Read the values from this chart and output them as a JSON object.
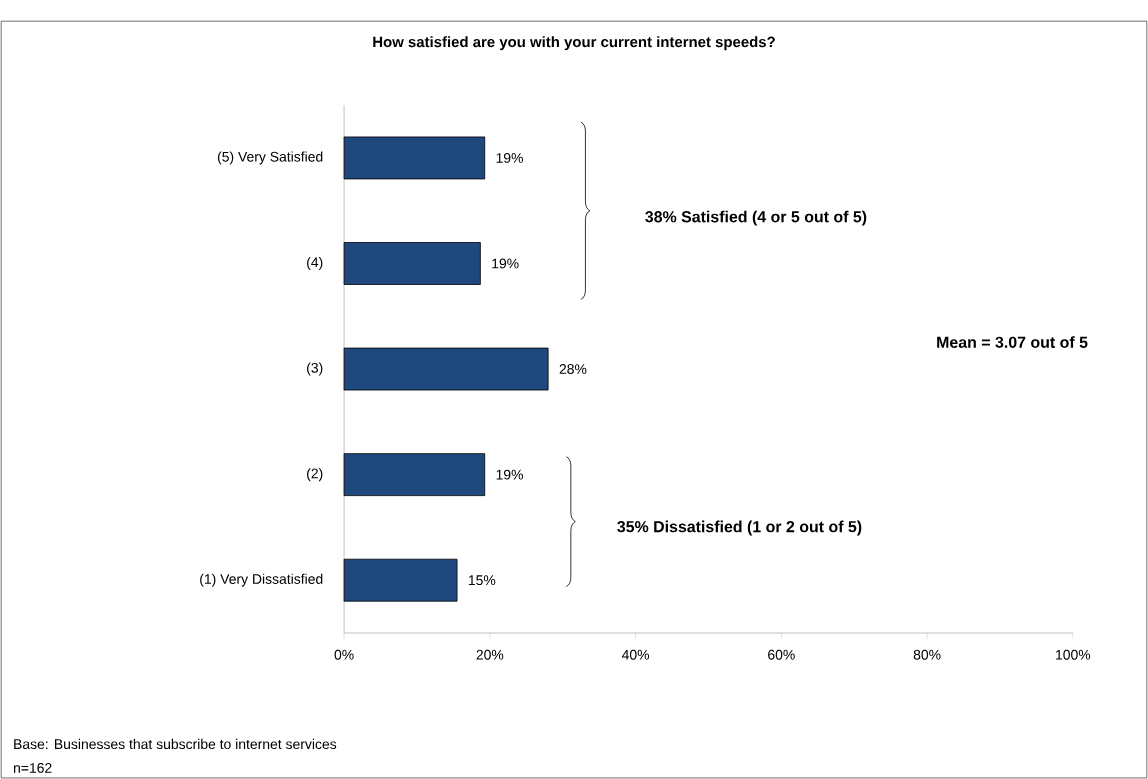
{
  "chart_data": {
    "type": "bar",
    "orientation": "horizontal",
    "title": "How satisfied are you with your current internet speeds?",
    "categories": [
      "(5) Very Satisfied",
      "(4)",
      "(3)",
      "(2)",
      "(1) Very Dissatisfied"
    ],
    "values": [
      19.3,
      18.7,
      28.0,
      19.3,
      15.5
    ],
    "value_labels": [
      "19%",
      "19%",
      "28%",
      "19%",
      "15%"
    ],
    "color": "#1f497d",
    "xlim": [
      0,
      100
    ],
    "xticks": [
      {
        "value": 0,
        "label": "0%"
      },
      {
        "value": 20,
        "label": "20%"
      },
      {
        "value": 40,
        "label": "40%"
      },
      {
        "value": 60,
        "label": "60%"
      },
      {
        "value": 80,
        "label": "80%"
      },
      {
        "value": 100,
        "label": "100%"
      }
    ],
    "annotations": [
      "38% Satisfied (4 or 5 out of 5)",
      "Mean = 3.07 out of 5",
      "35% Dissatisfied (1 or 2 out of 5)",
      "Base: Businesses that subscribe to internet services",
      "n=162"
    ]
  }
}
